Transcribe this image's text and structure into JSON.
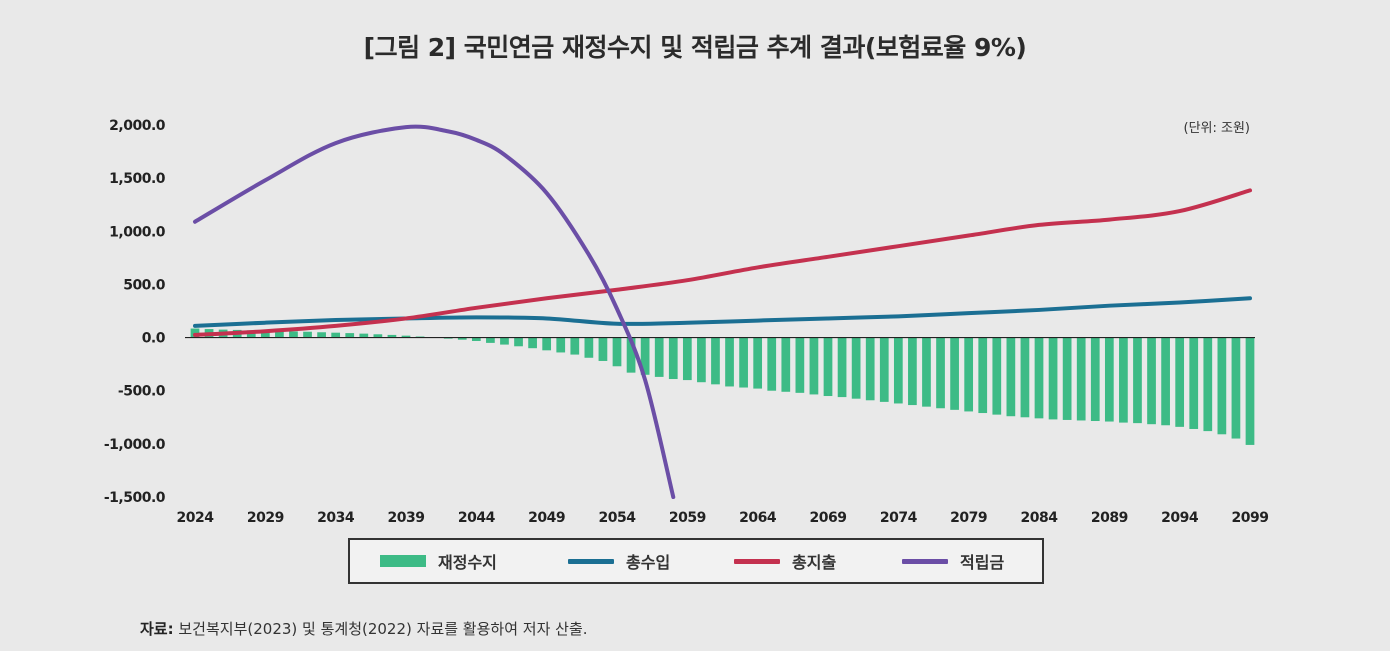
{
  "title": "[그림 2] 국민연금 재정수지 및 적립금 추계 결과(보험료율 9%)",
  "unit_label": "(단위: 조원)",
  "source": {
    "label": "자료:",
    "text": " 보건복지부(2023) 및 통계청(2022) 자료를 활용하여 저자 산출."
  },
  "colors": {
    "balance": "#3dbb86",
    "revenue": "#1b6f93",
    "expenditure": "#c4314f",
    "fund": "#6b4ea6"
  },
  "chart_data": {
    "type": "bar+line",
    "title": "[그림 2] 국민연금 재정수지 및 적립금 추계 결과(보험료율 9%)",
    "unit": "조원",
    "xlabel": "",
    "ylabel": "",
    "ylim": [
      -1500,
      2000
    ],
    "yticks": [
      2000,
      1500,
      1000,
      500,
      0,
      -500,
      -1000,
      -1500
    ],
    "ytick_labels": [
      "2,000.0",
      "1,500.0",
      "1,000.0",
      "500.0",
      "0.0",
      "-500.0",
      "-1,000.0",
      "-1,500.0"
    ],
    "xticks": [
      "2024",
      "2029",
      "2034",
      "2039",
      "2044",
      "2049",
      "2054",
      "2059",
      "2064",
      "2069",
      "2074",
      "2079",
      "2084",
      "2089",
      "2094",
      "2099"
    ],
    "x_start": 2024,
    "x_end": 2099,
    "legend": [
      "재정수지",
      "총수입",
      "총지출",
      "적립금"
    ],
    "series": [
      {
        "name": "재정수지",
        "kind": "bar",
        "color": "#3dbb86",
        "x": [
          2024,
          2025,
          2026,
          2027,
          2028,
          2029,
          2030,
          2031,
          2032,
          2033,
          2034,
          2035,
          2036,
          2037,
          2038,
          2039,
          2040,
          2041,
          2042,
          2043,
          2044,
          2045,
          2046,
          2047,
          2048,
          2049,
          2050,
          2051,
          2052,
          2053,
          2054,
          2055,
          2056,
          2057,
          2058,
          2059,
          2060,
          2061,
          2062,
          2063,
          2064,
          2065,
          2066,
          2067,
          2068,
          2069,
          2070,
          2071,
          2072,
          2073,
          2074,
          2075,
          2076,
          2077,
          2078,
          2079,
          2080,
          2081,
          2082,
          2083,
          2084,
          2085,
          2086,
          2087,
          2088,
          2089,
          2090,
          2091,
          2092,
          2093,
          2094,
          2095,
          2096,
          2097,
          2098,
          2099
        ],
        "values": [
          85,
          80,
          75,
          72,
          68,
          65,
          62,
          58,
          55,
          50,
          46,
          42,
          37,
          31,
          25,
          18,
          10,
          0,
          -10,
          -20,
          -32,
          -50,
          -66,
          -82,
          -100,
          -120,
          -140,
          -160,
          -190,
          -220,
          -270,
          -330,
          -350,
          -370,
          -390,
          -400,
          -420,
          -440,
          -460,
          -470,
          -480,
          -500,
          -510,
          -520,
          -535,
          -550,
          -560,
          -575,
          -590,
          -605,
          -620,
          -635,
          -650,
          -665,
          -680,
          -695,
          -710,
          -725,
          -740,
          -750,
          -760,
          -770,
          -775,
          -780,
          -785,
          -790,
          -800,
          -805,
          -815,
          -825,
          -840,
          -860,
          -880,
          -910,
          -950,
          -1010
        ]
      },
      {
        "name": "총수입",
        "kind": "line",
        "color": "#1b6f93",
        "x": [
          2024,
          2029,
          2034,
          2039,
          2044,
          2049,
          2054,
          2059,
          2064,
          2069,
          2074,
          2079,
          2084,
          2089,
          2094,
          2099
        ],
        "values": [
          110,
          140,
          165,
          180,
          190,
          180,
          130,
          140,
          160,
          180,
          200,
          230,
          260,
          300,
          330,
          370
        ]
      },
      {
        "name": "총지출",
        "kind": "line",
        "color": "#c4314f",
        "x": [
          2024,
          2029,
          2034,
          2039,
          2044,
          2049,
          2054,
          2059,
          2064,
          2069,
          2074,
          2079,
          2084,
          2089,
          2094,
          2099
        ],
        "values": [
          25,
          60,
          110,
          180,
          280,
          370,
          450,
          540,
          660,
          760,
          860,
          960,
          1060,
          1110,
          1190,
          1385
        ]
      },
      {
        "name": "적립금",
        "kind": "line",
        "color": "#6b4ea6",
        "x": [
          2024,
          2029,
          2034,
          2039,
          2042,
          2044,
          2046,
          2049,
          2052,
          2054,
          2056,
          2058
        ],
        "values": [
          1090,
          1480,
          1830,
          1980,
          1940,
          1860,
          1720,
          1360,
          780,
          270,
          -400,
          -1500
        ]
      }
    ]
  }
}
